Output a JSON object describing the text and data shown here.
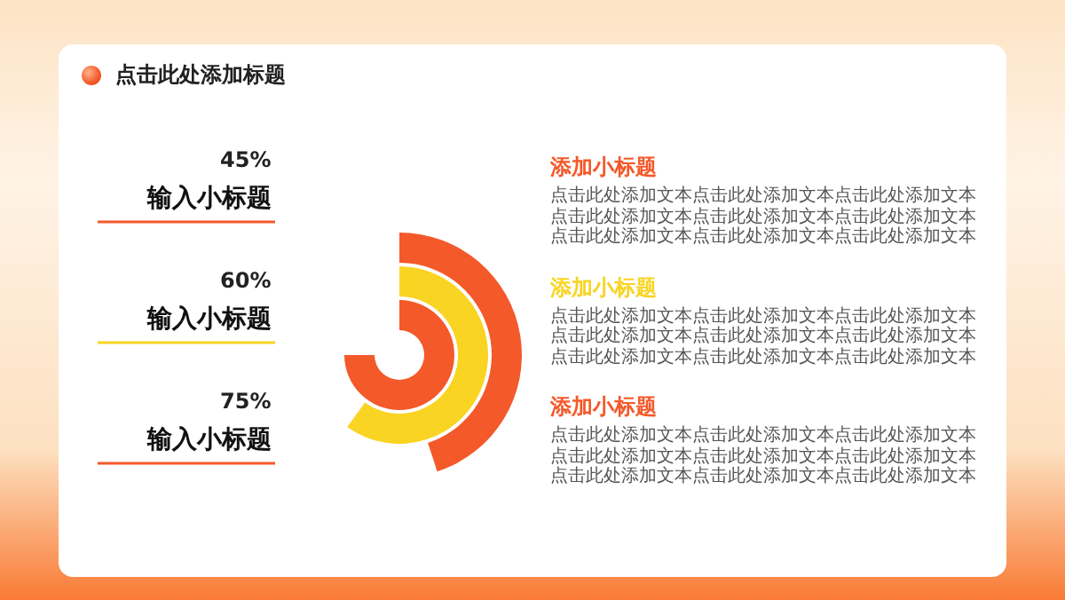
{
  "chart_data": {
    "type": "other",
    "title": "点击此处添加标题",
    "categories": [
      "输入小标题",
      "输入小标题",
      "输入小标题"
    ],
    "values": [
      45,
      60,
      75
    ],
    "value_labels": [
      "45%",
      "60%",
      "75%"
    ],
    "colors": [
      "#f4592a",
      "#f9d423",
      "#f4592a"
    ],
    "annotations": [
      "添加小标题",
      "点击此处添加文本点击此处添加文本点击此处添加文本点击此处添加文本点击此处添加文本点击此处添加文本点击此处添加文本点击此处添加文本点击此处添加文本",
      "添加小标题",
      "点击此处添加文本点击此处添加文本点击此处添加文本点击此处添加文本点击此处添加文本点击此处添加文本点击此处添加文本点击此处添加文本点击此处添加文本",
      "添加小标题",
      "点击此处添加文本点击此处添加文本点击此处添加文本点击此处添加文本点击此处添加文本点击此处添加文本点击此处添加文本点击此处添加文本点击此处添加文本"
    ]
  }
}
